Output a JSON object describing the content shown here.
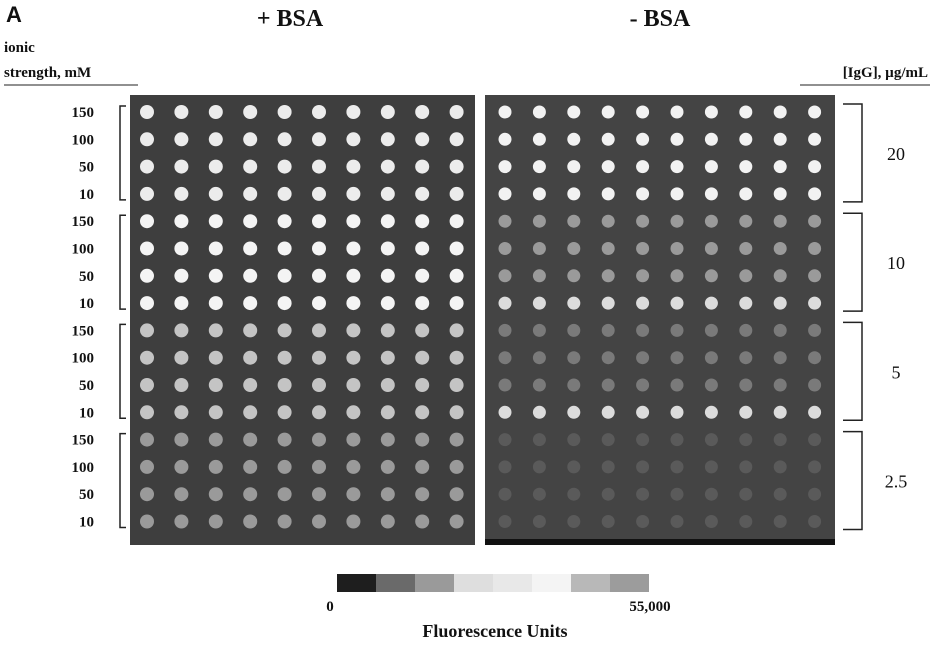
{
  "panel_label": "A",
  "left_axis_label": [
    "ionic",
    "strength, mM"
  ],
  "right_axis_label": "[IgG], µg/mL",
  "panels": [
    {
      "title": "+ BSA"
    },
    {
      "title": "- BSA"
    }
  ],
  "groups": [
    {
      "label": "20",
      "rows": [
        "150",
        "100",
        "50",
        "10"
      ]
    },
    {
      "label": "10",
      "rows": [
        "150",
        "100",
        "50",
        "10"
      ]
    },
    {
      "label": "5",
      "rows": [
        "150",
        "100",
        "50",
        "10"
      ]
    },
    {
      "label": "2.5",
      "rows": [
        "150",
        "100",
        "50",
        "10"
      ]
    }
  ],
  "colorbar": {
    "min_label": "0",
    "max_label": "55,000",
    "title": "Fluorescence Units"
  }
}
